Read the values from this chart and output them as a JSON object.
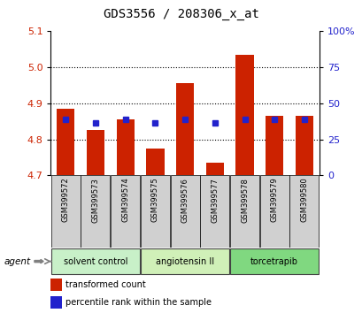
{
  "title": "GDS3556 / 208306_x_at",
  "samples": [
    "GSM399572",
    "GSM399573",
    "GSM399574",
    "GSM399575",
    "GSM399576",
    "GSM399577",
    "GSM399578",
    "GSM399579",
    "GSM399580"
  ],
  "red_values": [
    4.885,
    4.825,
    4.855,
    4.775,
    4.955,
    4.735,
    5.035,
    4.865,
    4.865
  ],
  "blue_values": [
    4.855,
    4.845,
    4.855,
    4.845,
    4.855,
    4.845,
    4.855,
    4.855,
    4.855
  ],
  "groups": [
    {
      "label": "solvent control",
      "start": 0,
      "end": 3,
      "color": "#c8f0c8"
    },
    {
      "label": "angiotensin II",
      "start": 3,
      "end": 6,
      "color": "#d0f0b8"
    },
    {
      "label": "torcetrapib",
      "start": 6,
      "end": 9,
      "color": "#80d880"
    }
  ],
  "y_min": 4.7,
  "y_max": 5.1,
  "y_ticks": [
    4.7,
    4.8,
    4.9,
    5.0,
    5.1
  ],
  "y2_ticks": [
    0,
    25,
    50,
    75,
    100
  ],
  "bar_color": "#cc2200",
  "dot_color": "#2222cc",
  "bar_width": 0.6,
  "legend_red": "transformed count",
  "legend_blue": "percentile rank within the sample",
  "background_color": "#ffffff",
  "plot_bg_color": "#ffffff",
  "tick_label_color_left": "#cc2200",
  "tick_label_color_right": "#2222cc",
  "xlabel_gray_bg": "#d0d0d0"
}
